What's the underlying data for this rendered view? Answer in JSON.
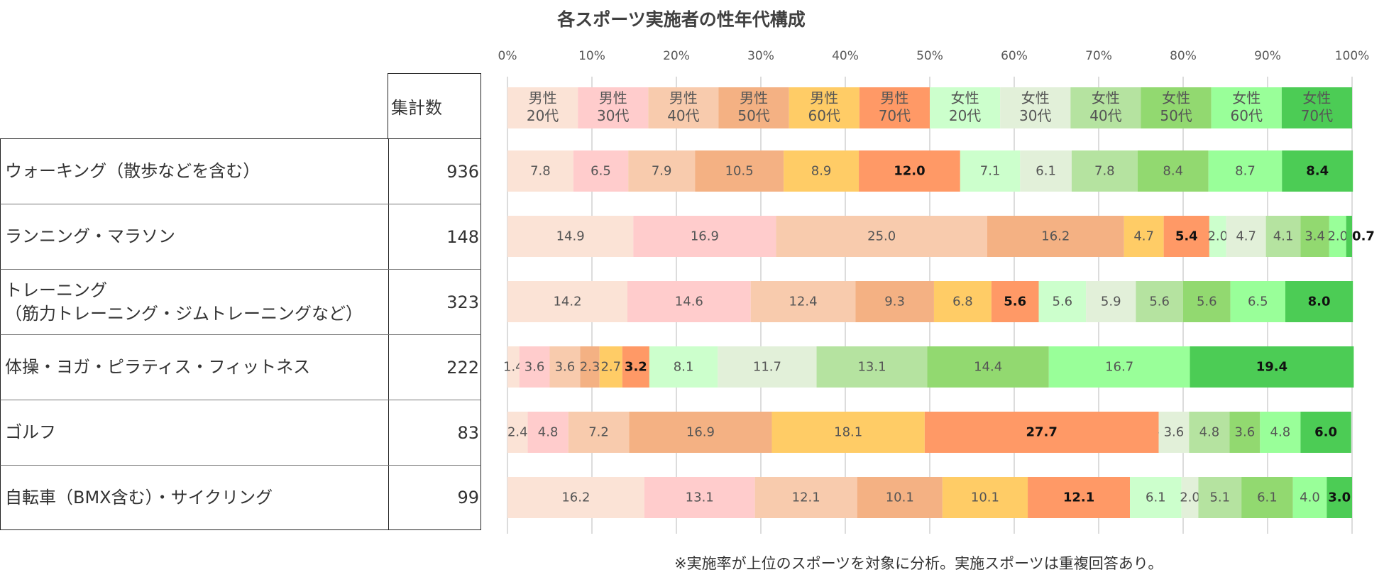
{
  "chart_data": {
    "type": "bar",
    "orientation": "horizontal",
    "stacked": "percent",
    "title": "各スポーツ実施者の性年代構成",
    "note": "※実施率が上位のスポーツを対象に分析。実施スポーツは重複回答あり。",
    "count_header": "集計数",
    "xaxis_ticks": [
      "0%",
      "10%",
      "20%",
      "30%",
      "40%",
      "50%",
      "60%",
      "70%",
      "80%",
      "90%",
      "100%"
    ],
    "xlim": [
      0,
      100
    ],
    "grid": true,
    "segments": [
      {
        "line1": "男性",
        "line2": "20代",
        "color": "#FBE3D6"
      },
      {
        "line1": "男性",
        "line2": "30代",
        "color": "#FFCCCC"
      },
      {
        "line1": "男性",
        "line2": "40代",
        "color": "#F8CBAD"
      },
      {
        "line1": "男性",
        "line2": "50代",
        "color": "#F4B183"
      },
      {
        "line1": "男性",
        "line2": "60代",
        "color": "#FFCC66"
      },
      {
        "line1": "男性",
        "line2": "70代",
        "color": "#FF9966"
      },
      {
        "line1": "女性",
        "line2": "20代",
        "color": "#CCFFCC"
      },
      {
        "line1": "女性",
        "line2": "30代",
        "color": "#E2F0D9"
      },
      {
        "line1": "女性",
        "line2": "40代",
        "color": "#B5E3A0"
      },
      {
        "line1": "女性",
        "line2": "50代",
        "color": "#92D970"
      },
      {
        "line1": "女性",
        "line2": "60代",
        "color": "#99FF99"
      },
      {
        "line1": "女性",
        "line2": "70代",
        "color": "#4CCC55"
      }
    ],
    "rows": [
      {
        "lines": [
          "ウォーキング（散歩などを含む）"
        ],
        "count": "936",
        "values": [
          7.8,
          6.5,
          7.9,
          10.5,
          8.9,
          12.0,
          7.1,
          6.1,
          7.8,
          8.4,
          8.7,
          8.4
        ],
        "labels": [
          "7.8",
          "6.5",
          "7.9",
          "10.5",
          "8.9",
          "12.0",
          "7.1",
          "6.1",
          "7.8",
          "8.4",
          "8.7",
          "8.4"
        ]
      },
      {
        "lines": [
          "ランニング・マラソン"
        ],
        "count": "148",
        "values": [
          14.9,
          16.9,
          25.0,
          16.2,
          4.7,
          5.4,
          2.0,
          4.7,
          4.1,
          3.4,
          2.0,
          0.7
        ],
        "labels": [
          "14.9",
          "16.9",
          "25.0",
          "16.2",
          "4.7",
          "5.4",
          "2.0",
          "4.7",
          "4.1",
          "3.4",
          "2.0",
          "0.7"
        ]
      },
      {
        "lines": [
          "トレーニング",
          "（筋力トレーニング・ジムトレーニングなど）"
        ],
        "count": "323",
        "values": [
          14.2,
          14.6,
          12.4,
          9.3,
          6.8,
          5.6,
          5.6,
          5.9,
          5.6,
          5.6,
          6.5,
          8.0
        ],
        "labels": [
          "14.2",
          "14.6",
          "12.4",
          "9.3",
          "6.8",
          "5.6",
          "5.6",
          "5.9",
          "5.6",
          "5.6",
          "6.5",
          "8.0"
        ]
      },
      {
        "lines": [
          "体操・ヨガ・ピラティス・フィットネス"
        ],
        "count": "222",
        "values": [
          1.4,
          3.6,
          3.6,
          2.3,
          2.7,
          3.2,
          8.1,
          11.7,
          13.1,
          14.4,
          16.7,
          19.4
        ],
        "labels": [
          "1.4",
          "3.6",
          "3.6",
          "2.3",
          "2.7",
          "3.2",
          "8.1",
          "11.7",
          "13.1",
          "14.4",
          "16.7",
          "19.4"
        ]
      },
      {
        "lines": [
          "ゴルフ"
        ],
        "count": "83",
        "values": [
          2.4,
          4.8,
          7.2,
          16.9,
          18.1,
          27.7,
          0.0,
          3.6,
          4.8,
          3.6,
          4.8,
          6.0
        ],
        "labels": [
          "2.4",
          "4.8",
          "7.2",
          "16.9",
          "18.1",
          "27.7",
          "-",
          "3.6",
          "4.8",
          "3.6",
          "4.8",
          "6.0"
        ]
      },
      {
        "lines": [
          "自転車（BMX含む）・サイクリング"
        ],
        "count": "99",
        "values": [
          16.2,
          13.1,
          12.1,
          10.1,
          10.1,
          12.1,
          6.1,
          2.0,
          5.1,
          6.1,
          4.0,
          3.0
        ],
        "labels": [
          "16.2",
          "13.1",
          "12.1",
          "10.1",
          "10.1",
          "12.1",
          "6.1",
          "2.0",
          "5.1",
          "6.1",
          "4.0",
          "3.0"
        ]
      }
    ]
  }
}
